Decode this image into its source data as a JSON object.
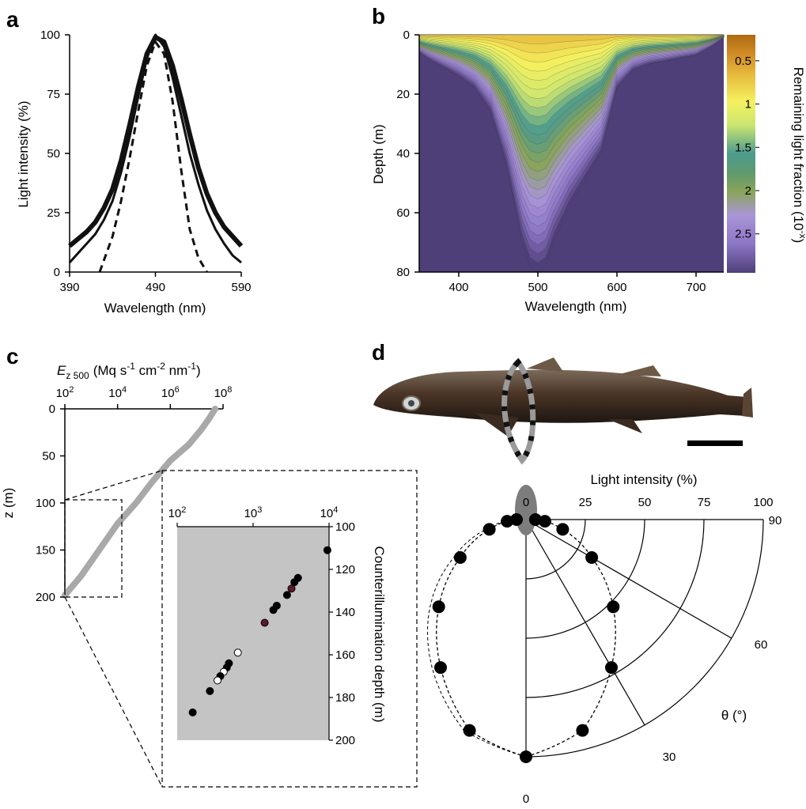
{
  "panel_labels": [
    "a",
    "b",
    "c",
    "d"
  ],
  "colors": {
    "line": "#111111",
    "inset_bg": "#c4c4c4",
    "scatter_marker": "#a9a9a9",
    "colormap": [
      "#ad6a12",
      "#e6b63a",
      "#f5f15f",
      "#cbe570",
      "#4c9a8e",
      "#8aa45a",
      "#a995d8",
      "#8c76c6",
      "#4f3f79"
    ]
  },
  "icons": [
    "lanternshark-photo"
  ],
  "scale_bar": "scale-bar",
  "chart_data": [
    {
      "panel": "a",
      "type": "line",
      "xlabel": "Wavelength (nm)",
      "ylabel": "Light intensity (%)",
      "xlim": [
        390,
        590
      ],
      "ylim": [
        0,
        100
      ],
      "xticks": [
        390,
        490,
        590
      ],
      "yticks": [
        0,
        25,
        50,
        75,
        100
      ],
      "series": [
        {
          "style": "thick-solid",
          "x": [
            390,
            400,
            410,
            420,
            430,
            440,
            450,
            460,
            470,
            480,
            490,
            500,
            510,
            520,
            530,
            540,
            550,
            560,
            570,
            580,
            590
          ],
          "y": [
            11,
            14,
            17,
            21,
            27,
            35,
            47,
            62,
            78,
            92,
            99,
            97,
            87,
            73,
            58,
            44,
            33,
            25,
            19,
            15,
            11
          ]
        },
        {
          "style": "thin-solid",
          "x": [
            390,
            400,
            410,
            420,
            430,
            440,
            450,
            460,
            470,
            480,
            490,
            500,
            510,
            520,
            530,
            540,
            550,
            560,
            570,
            580,
            590
          ],
          "y": [
            4,
            8,
            12,
            16,
            22,
            30,
            42,
            57,
            74,
            90,
            100,
            95,
            82,
            66,
            50,
            37,
            26,
            18,
            12,
            7,
            4
          ]
        },
        {
          "style": "dashed",
          "x": [
            425,
            440,
            450,
            460,
            470,
            480,
            490,
            500,
            510,
            520,
            530,
            540,
            550
          ],
          "y": [
            0,
            15,
            30,
            48,
            68,
            87,
            97,
            92,
            72,
            43,
            18,
            6,
            0
          ]
        }
      ]
    },
    {
      "panel": "b",
      "type": "heatmap",
      "xlabel": "Wavelength (nm)",
      "ylabel": "Depth (m)",
      "xlim": [
        350,
        735
      ],
      "ylim": [
        0,
        80
      ],
      "xticks": [
        400,
        500,
        600,
        700
      ],
      "yticks": [
        0,
        20,
        40,
        60,
        80
      ],
      "colorbar": {
        "label": "Remaining light fraction (10",
        "label_sup": "-x",
        "label_end": ")",
        "ticks": [
          "0.5",
          "1",
          "1.5",
          "2",
          "2.5"
        ],
        "tick_values": [
          0.5,
          1,
          1.5,
          2,
          2.5
        ],
        "range": [
          0.2,
          2.95
        ]
      },
      "contour_bottom_depth": {
        "x": [
          350,
          360,
          380,
          400,
          420,
          440,
          460,
          480,
          490,
          500,
          510,
          520,
          540,
          560,
          580,
          600,
          620,
          640,
          660,
          680,
          700,
          720,
          735
        ],
        "y": [
          6,
          8,
          11,
          14,
          18,
          26,
          44,
          70,
          78,
          80,
          78,
          70,
          58,
          49,
          40,
          18,
          12,
          10,
          9,
          8,
          7,
          4,
          1
        ]
      }
    },
    {
      "panel": "c",
      "type": "scatter",
      "xlabel": "E",
      "xlabel_sub": "z 500",
      "xlabel_units": "(Mq s",
      "xlabel_units_sup": "-1",
      "xlabel_units_b": " cm",
      "xlabel_units_b_sup": "-2",
      "xlabel_units_c": " nm",
      "xlabel_units_c_sup": "-1",
      "xlabel_units_end": ")",
      "ylabel": "z (m)",
      "xscale": "log",
      "xlim": [
        100,
        100000000
      ],
      "ylim": [
        0,
        200
      ],
      "xticks": [
        {
          "base": "10",
          "exp": "2"
        },
        {
          "base": "10",
          "exp": "4"
        },
        {
          "base": "10",
          "exp": "6"
        },
        {
          "base": "10",
          "exp": "8"
        }
      ],
      "xtick_values": [
        100,
        10000,
        1000000,
        100000000
      ],
      "yticks": [
        0,
        50,
        100,
        150,
        200
      ],
      "series": [
        {
          "x": [
            50000000,
            30000000,
            15000000,
            5000000,
            1000000,
            200000,
            50000,
            10000,
            2000,
            400,
            100
          ],
          "y": [
            0,
            10,
            22,
            38,
            55,
            78,
            100,
            122,
            150,
            178,
            198
          ]
        }
      ],
      "inset": {
        "ylabel": "Counterillumination depth (m)",
        "xscale": "log",
        "xlim": [
          100,
          10000
        ],
        "ylim": [
          100,
          200
        ],
        "xticks": [
          {
            "base": "10",
            "exp": "2"
          },
          {
            "base": "10",
            "exp": "3"
          },
          {
            "base": "10",
            "exp": "4"
          }
        ],
        "xtick_values": [
          100,
          1000,
          10000
        ],
        "yticks": [
          100,
          120,
          140,
          160,
          180,
          200
        ],
        "points": [
          {
            "x": 9500,
            "y": 111,
            "fill": "black"
          },
          {
            "x": 3900,
            "y": 124,
            "fill": "black"
          },
          {
            "x": 3500,
            "y": 126,
            "fill": "black"
          },
          {
            "x": 3200,
            "y": 129,
            "fill": "#5a1a2a"
          },
          {
            "x": 2800,
            "y": 132,
            "fill": "black"
          },
          {
            "x": 2050,
            "y": 137,
            "fill": "black"
          },
          {
            "x": 1850,
            "y": 139,
            "fill": "black"
          },
          {
            "x": 1420,
            "y": 145,
            "fill": "#5a1a2a"
          },
          {
            "x": 630,
            "y": 159,
            "fill": "white"
          },
          {
            "x": 480,
            "y": 164,
            "fill": "black"
          },
          {
            "x": 450,
            "y": 166,
            "fill": "black"
          },
          {
            "x": 410,
            "y": 168,
            "fill": "white"
          },
          {
            "x": 370,
            "y": 170,
            "fill": "black"
          },
          {
            "x": 340,
            "y": 172,
            "fill": "white"
          },
          {
            "x": 270,
            "y": 177,
            "fill": "black"
          },
          {
            "x": 160,
            "y": 187,
            "fill": "black"
          }
        ]
      }
    },
    {
      "panel": "d",
      "type": "scatter",
      "subtype": "polar",
      "radial_label": "Light  intensity (%)",
      "angle_label": "θ (°)",
      "radial_ticks": [
        0,
        25,
        50,
        75,
        100
      ],
      "angle_ticks": [
        0,
        30,
        60,
        90
      ],
      "points": [
        {
          "theta": 0,
          "r": 100
        },
        {
          "theta": 15,
          "r": 92
        },
        {
          "theta": 30,
          "r": 72
        },
        {
          "theta": 45,
          "r": 52
        },
        {
          "theta": 60,
          "r": 32
        },
        {
          "theta": 75,
          "r": 16
        },
        {
          "theta": 85,
          "r": 8
        },
        {
          "theta": 90,
          "r": 4
        }
      ]
    }
  ]
}
